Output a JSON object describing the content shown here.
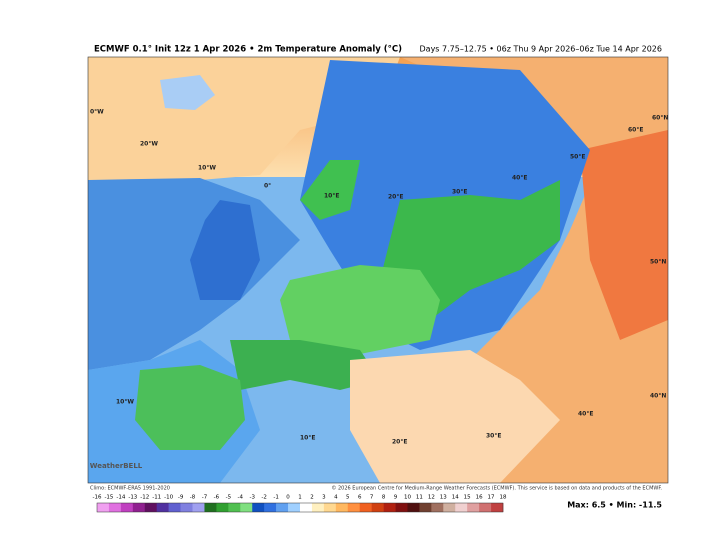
{
  "header": {
    "title": "ECMWF 0.1° Init 12z 1 Apr 2026 • 2m Temperature Anomaly (°C)",
    "period": "Days 7.75–12.75 • 06z Thu 9 Apr 2026–06z Tue 14 Apr 2026"
  },
  "map": {
    "labels": [
      "0°W",
      "20°W",
      "10°W",
      "0°",
      "10°E",
      "20°E",
      "30°E",
      "40°E",
      "50°E",
      "60°E",
      "60°N",
      "50°N",
      "40°N",
      "10°W",
      "20°E",
      "30°E",
      "10°E",
      "40°E"
    ],
    "watermark": "WeatherBELL",
    "climo": "Climo: ECMWF-ERA5 1991-2020"
  },
  "footer": {
    "copyright": "© 2026 European Centre for Medium-Range Weather Forecasts (ECMWF). This service is based on data and products of the ECMWF.",
    "max_min": "Max: 6.5 • Min: -11.5"
  },
  "colorbar": {
    "labels": [
      -16,
      -15,
      -14,
      -13,
      -12,
      -11,
      -10,
      -9,
      -8,
      -7,
      -6,
      -5,
      -4,
      -3,
      -2,
      -1,
      0,
      1,
      2,
      3,
      4,
      5,
      6,
      7,
      8,
      9,
      10,
      11,
      12,
      13,
      14,
      15,
      16,
      17,
      18
    ],
    "colors": [
      "#f0a0f0",
      "#e070e0",
      "#c040c0",
      "#902090",
      "#601060",
      "#5030a0",
      "#6060d0",
      "#8080e0",
      "#a0a0f0",
      "#207020",
      "#30a030",
      "#50c050",
      "#80e080",
      "#1050c0",
      "#3070e0",
      "#60a0f0",
      "#a0d0ff",
      "#ffffff",
      "#fff0c0",
      "#ffd890",
      "#ffb860",
      "#ff9040",
      "#f06020",
      "#d04010",
      "#b02010",
      "#801010",
      "#501010",
      "#704030",
      "#a07060",
      "#d0b0a0",
      "#f0d0d0",
      "#e0a0a0",
      "#d07070",
      "#c04040"
    ]
  }
}
